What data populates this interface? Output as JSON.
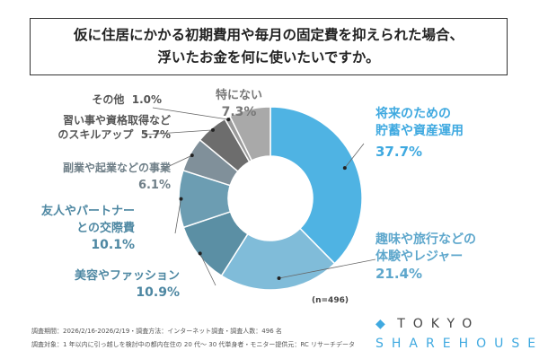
{
  "title": [
    "仮に住居にかかる初期費用や毎月の固定費を抑えられた場合、",
    "浮いたお金を何に使いたいですか。"
  ],
  "chart_data": {
    "type": "pie",
    "donut": true,
    "start": "top",
    "direction": "clockwise",
    "categories": [
      "将来のための貯蓄や資産運用",
      "趣味や旅行などの体験やレジャー",
      "美容やファッション",
      "友人やパートナーとの交際費",
      "副業や起業などの事業",
      "習い事や資格取得などのスキルアップ",
      "その他",
      "特にない"
    ],
    "values": [
      37.7,
      21.4,
      10.9,
      10.1,
      6.1,
      5.7,
      1.0,
      7.3
    ],
    "colors": [
      "#4fb3e3",
      "#80bcd9",
      "#5b8fa4",
      "#6c9db2",
      "#80909a",
      "#6d6d6d",
      "#9a9a9a",
      "#a9a9a9"
    ],
    "note": "(n=496)"
  },
  "labels": [
    {
      "lines": [
        "将来のための",
        "貯蓄や資産運用"
      ],
      "value": "37.7%",
      "color": "#3fa9e0"
    },
    {
      "lines": [
        "趣味や旅行などの",
        "体験やレジャー"
      ],
      "value": "21.4%",
      "color": "#5ea7cc"
    },
    {
      "lines": [
        "美容やファッション"
      ],
      "value": "10.9%",
      "color": "#4d87a2"
    },
    {
      "lines": [
        "友人やパートナー",
        "との交際費"
      ],
      "value": "10.1%",
      "color": "#4d87a2"
    },
    {
      "lines": [
        "副業や起業などの事業"
      ],
      "value": "6.1%",
      "color": "#6f7f88"
    },
    {
      "lines": [
        "習い事や資格取得など",
        "のスキルアップ"
      ],
      "value": "5.7%",
      "color": "#555"
    },
    {
      "lines": [
        "その他"
      ],
      "value": "1.0%",
      "color": "#555"
    },
    {
      "lines": [
        "特にない"
      ],
      "value": "7.3%",
      "color": "#777"
    }
  ],
  "footer": [
    "調査期間：2026/2/16-2026/2/19・調査方法：インターネット調査・調査人数：496 名",
    "調査対象：1 年以内に引っ越しを検討中の都内在住の 20 代～ 30 代単身者・モニター提供元：RC リサーチデータ"
  ],
  "logo": {
    "line1": "TOKYO",
    "line2": "SHAREHOUSE"
  }
}
